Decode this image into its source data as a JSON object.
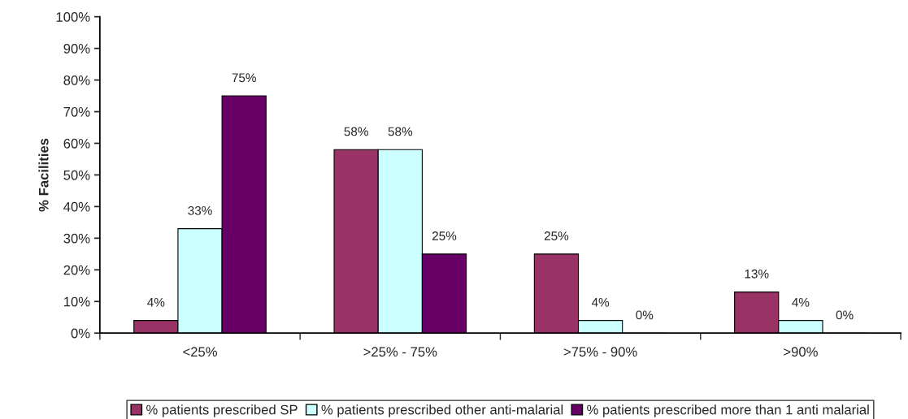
{
  "chart_data": {
    "type": "bar",
    "ylabel": "% Facilities",
    "categories": [
      "<25%",
      ">25% - 75%",
      ">75% - 90%",
      ">90%"
    ],
    "series": [
      {
        "name": "% patients prescribed SP",
        "color": "#993366",
        "values": [
          4,
          58,
          25,
          13
        ],
        "value_labels": [
          "4%",
          "58%",
          "25%",
          "13%"
        ]
      },
      {
        "name": "% patients prescribed other anti-malarial",
        "color": "#ccffff",
        "values": [
          33,
          58,
          4,
          4
        ],
        "value_labels": [
          "33%",
          "58%",
          "4%",
          "4%"
        ]
      },
      {
        "name": "% patients prescribed more than 1 anti malarial",
        "color": "#660066",
        "values": [
          75,
          25,
          0,
          0
        ],
        "value_labels": [
          "75%",
          "25%",
          "0%",
          "0%"
        ]
      }
    ],
    "ylim": [
      0,
      100
    ],
    "yticks": [
      {
        "value": 0,
        "label": "0%"
      },
      {
        "value": 10,
        "label": "10%"
      },
      {
        "value": 20,
        "label": "20%"
      },
      {
        "value": 30,
        "label": "30%"
      },
      {
        "value": 40,
        "label": "40%"
      },
      {
        "value": 50,
        "label": "50%"
      },
      {
        "value": 60,
        "label": "60%"
      },
      {
        "value": 70,
        "label": "70%"
      },
      {
        "value": 80,
        "label": "80%"
      },
      {
        "value": 90,
        "label": "90%"
      },
      {
        "value": 100,
        "label": "100%"
      }
    ],
    "grid": false,
    "legend": "bottom"
  }
}
